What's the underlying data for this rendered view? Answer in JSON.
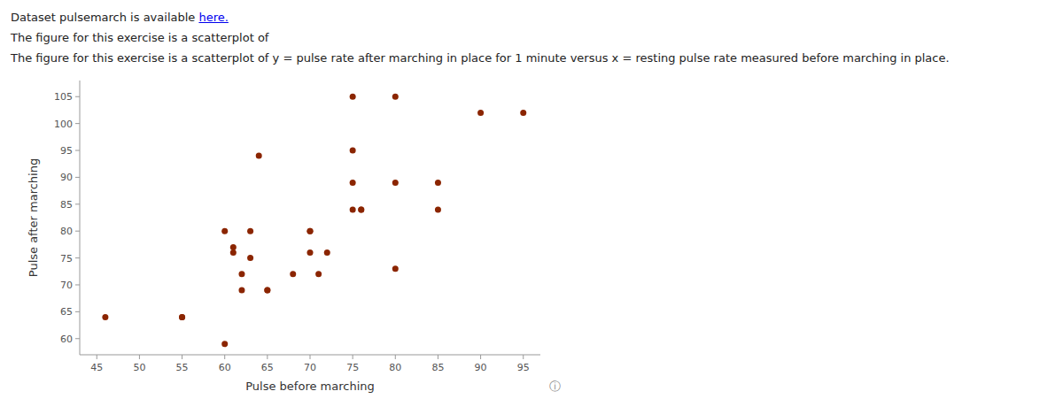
{
  "chart_data": {
    "type": "scatter",
    "annotations": [
      "Dataset pulsemarch is available ",
      "here.",
      "The figure for this exercise is a scatterplot of ",
      "The figure for this exercise is a scatterplot of y = pulse rate after marching in place for 1 minute versus x = resting pulse rate measured before marching in place.",
      "ⓘ"
    ],
    "x_label": "Pulse before marching",
    "y_label": "Pulse after marching",
    "x": [
      46,
      55,
      55,
      60,
      60,
      61,
      61,
      62,
      62,
      63,
      63,
      64,
      65,
      65,
      68,
      70,
      70,
      70,
      71,
      72,
      75,
      75,
      75,
      75,
      76,
      76,
      80,
      80,
      80,
      85,
      85,
      90,
      95
    ],
    "values": [
      64,
      64,
      64,
      80,
      59,
      77,
      76,
      72,
      69,
      80,
      75,
      94,
      69,
      69,
      72,
      80,
      80,
      76,
      72,
      76,
      105,
      95,
      89,
      84,
      84,
      84,
      105,
      89,
      73,
      89,
      84,
      102,
      102
    ],
    "color": "#8B2500",
    "xlim": [
      43,
      97
    ],
    "ylim": [
      57,
      108
    ],
    "xticks": [
      45,
      50,
      55,
      60,
      65,
      70,
      75,
      80,
      85,
      90,
      95
    ],
    "yticks": [
      60,
      65,
      70,
      75,
      80,
      85,
      90,
      95,
      100,
      105
    ],
    "grid": false
  }
}
